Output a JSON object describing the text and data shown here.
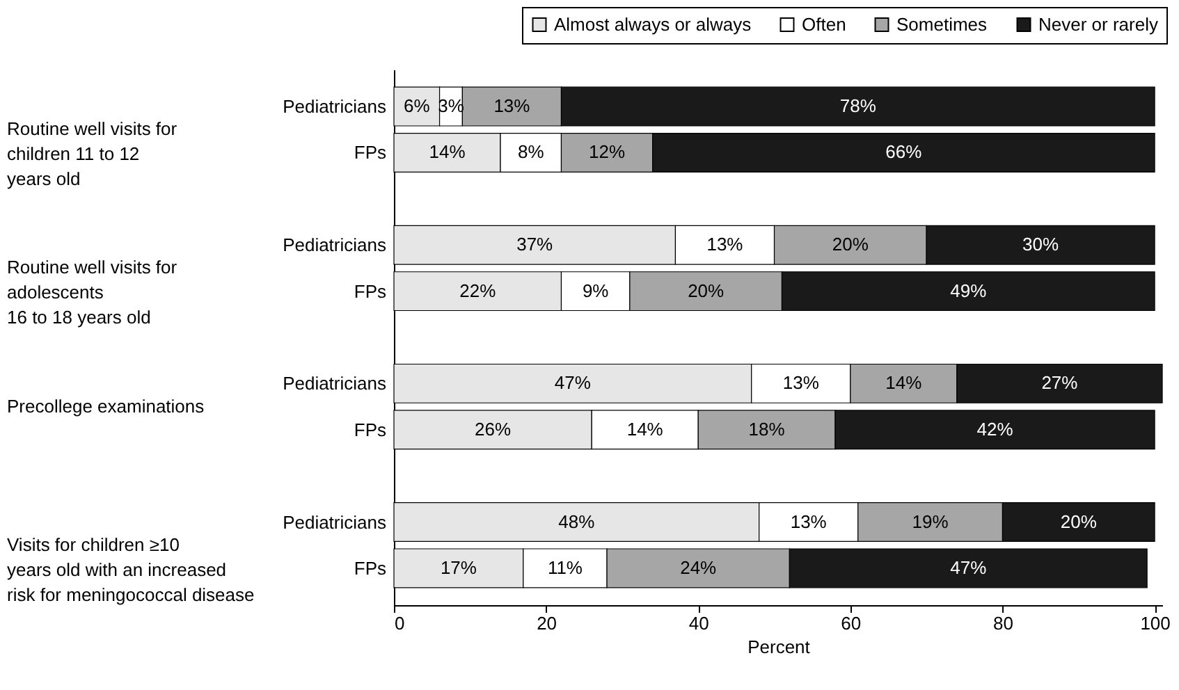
{
  "chart_data": {
    "type": "bar",
    "orientation": "horizontal",
    "stacked": true,
    "categories": [
      "Pediatricians",
      "FPs",
      "Pediatricians",
      "FPs",
      "Pediatricians",
      "FPs",
      "Pediatricians",
      "FPs"
    ],
    "series": [
      {
        "name": "Almost always or always",
        "color": "#e6e6e6",
        "values": [
          6,
          14,
          37,
          22,
          47,
          26,
          48,
          17
        ],
        "value_labels": [
          "6%",
          "14%",
          "37%",
          "22%",
          "47%",
          "26%",
          "48%",
          "17%"
        ]
      },
      {
        "name": "Often",
        "color": "#ffffff",
        "values": [
          3,
          8,
          13,
          9,
          13,
          14,
          13,
          11
        ],
        "value_labels": [
          "3%",
          "8%",
          "13%",
          "9%",
          "13%",
          "14%",
          "13%",
          "11%"
        ]
      },
      {
        "name": "Sometimes",
        "color": "#a6a6a6",
        "values": [
          13,
          12,
          20,
          20,
          14,
          18,
          19,
          24
        ],
        "value_labels": [
          "13%",
          "12%",
          "20%",
          "20%",
          "14%",
          "18%",
          "19%",
          "24%"
        ]
      },
      {
        "name": "Never or rarely",
        "color": "#1a1a1a",
        "values": [
          78,
          66,
          30,
          49,
          27,
          42,
          20,
          47
        ],
        "value_labels": [
          "78%",
          "66%",
          "30%",
          "49%",
          "27%",
          "42%",
          "20%",
          "47%"
        ]
      }
    ],
    "xlim": [
      0,
      101
    ],
    "xticks": [
      0,
      20,
      40,
      60,
      80,
      100
    ],
    "xlabel": "Percent",
    "annotations": [
      "Routine well visits for\nchildren 11 to 12\nyears old",
      "Routine well visits for\nadolescents\n16 to 18 years old",
      "Precollege examinations",
      "Visits for children ≥10\nyears old with an increased\nrisk for meningococcal disease"
    ],
    "legend": "top right",
    "grid": false
  }
}
